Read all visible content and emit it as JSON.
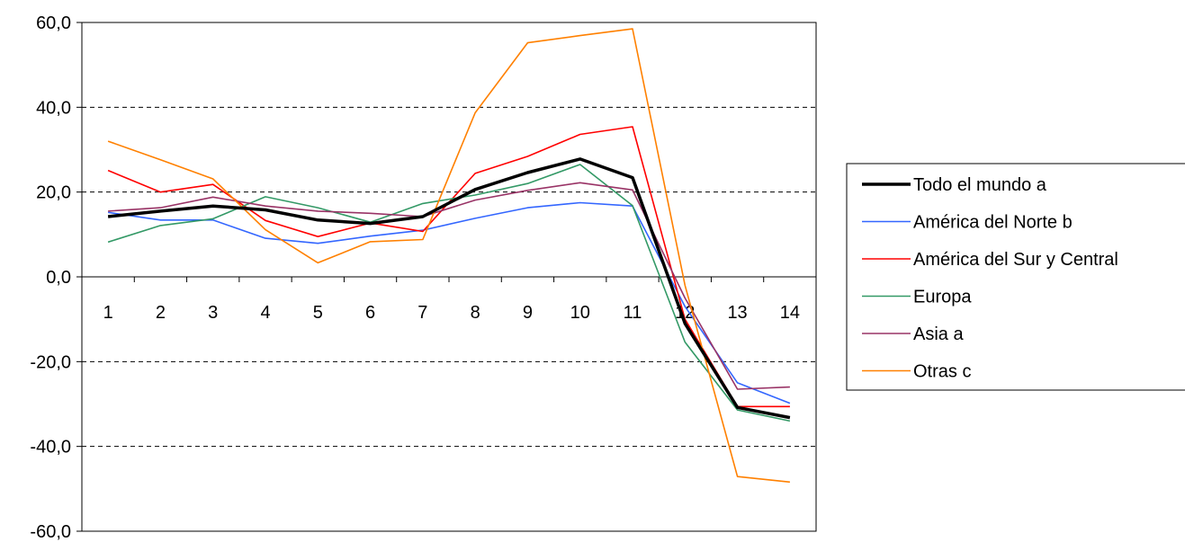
{
  "chart_data": {
    "type": "line",
    "title": "",
    "xlabel": "",
    "ylabel": "",
    "categories": [
      "1",
      "2",
      "3",
      "4",
      "5",
      "6",
      "7",
      "8",
      "9",
      "10",
      "11",
      "12",
      "13",
      "14"
    ],
    "ylim": [
      -60,
      60
    ],
    "yticks": [
      "60,0",
      "40,0",
      "20,0",
      "0,0",
      "-20,0",
      "-40,0",
      "-60,0"
    ],
    "grid": "horizontal dashed",
    "legend_position": "right",
    "series": [
      {
        "name": "Todo el mundo a",
        "color": "#000000",
        "width": "thick",
        "values": [
          14.2,
          15.5,
          16.7,
          15.8,
          13.4,
          12.6,
          14.2,
          20.6,
          24.6,
          27.8,
          23.4,
          -11.0,
          -30.8,
          -33.2
        ]
      },
      {
        "name": "América del Norte b",
        "color": "#3366ff",
        "width": "thin",
        "values": [
          15.2,
          13.4,
          13.4,
          9.1,
          7.9,
          9.6,
          11.0,
          13.8,
          16.3,
          17.5,
          16.7,
          -7.0,
          -25.0,
          -29.8
        ]
      },
      {
        "name": "América del Sur y Central",
        "color": "#ff0000",
        "width": "thin",
        "values": [
          25.1,
          20.0,
          21.8,
          13.3,
          9.5,
          12.7,
          10.7,
          24.4,
          28.4,
          33.6,
          35.4,
          -10.0,
          -30.6,
          -30.6
        ]
      },
      {
        "name": "Europa",
        "color": "#339966",
        "width": "thin",
        "values": [
          8.2,
          12.1,
          13.7,
          18.9,
          16.3,
          12.9,
          17.3,
          19.3,
          22.0,
          26.5,
          16.8,
          -15.4,
          -31.4,
          -34.0
        ]
      },
      {
        "name": "Asia a",
        "color": "#993366",
        "width": "thin",
        "values": [
          15.5,
          16.3,
          18.8,
          16.7,
          15.5,
          15.0,
          14.2,
          18.1,
          20.4,
          22.2,
          20.5,
          -5.0,
          -26.5,
          -26.0
        ]
      },
      {
        "name": "Otras c",
        "color": "#ff8000",
        "width": "thin",
        "values": [
          32.0,
          27.6,
          23.1,
          11.1,
          3.3,
          8.3,
          8.8,
          38.7,
          55.2,
          56.9,
          58.5,
          -2.0,
          -47.1,
          -48.4
        ]
      }
    ]
  }
}
